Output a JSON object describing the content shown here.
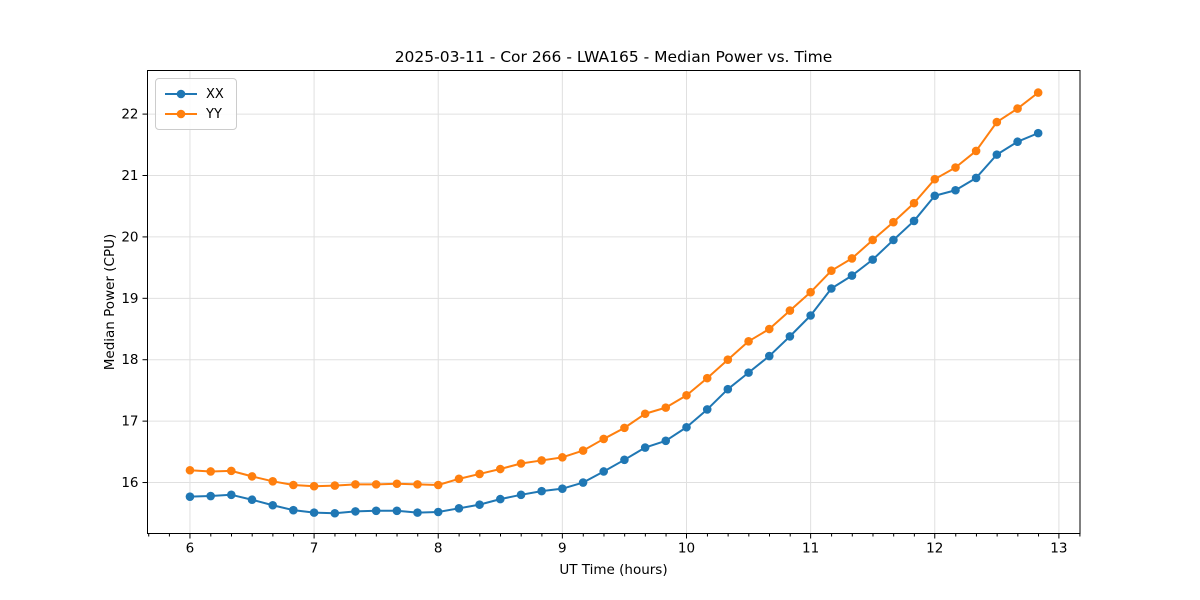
{
  "chart_data": {
    "type": "line",
    "title": "2025-03-11 - Cor 266 - LWA165 - Median Power vs. Time",
    "xlabel": "UT Time (hours)",
    "ylabel": "Median Power (CPU)",
    "xlim": [
      5.658,
      13.17
    ],
    "ylim": [
      15.17,
      22.71
    ],
    "xticks": [
      6,
      7,
      8,
      9,
      10,
      11,
      12,
      13
    ],
    "yticks": [
      16,
      17,
      18,
      19,
      20,
      21,
      22
    ],
    "x_minor_tick_step": 0.1667,
    "grid": true,
    "grid_color": "#e0e0e0",
    "legend_position": "upper left",
    "x": [
      6.0,
      6.167,
      6.333,
      6.5,
      6.667,
      6.833,
      7.0,
      7.167,
      7.333,
      7.5,
      7.667,
      7.833,
      8.0,
      8.167,
      8.333,
      8.5,
      8.667,
      8.833,
      9.0,
      9.167,
      9.333,
      9.5,
      9.667,
      9.833,
      10.0,
      10.167,
      10.333,
      10.5,
      10.667,
      10.833,
      11.0,
      11.167,
      11.333,
      11.5,
      11.667,
      11.833,
      12.0,
      12.167,
      12.333,
      12.5,
      12.667,
      12.833
    ],
    "series": [
      {
        "name": "XX",
        "color": "#1f77b4",
        "marker": "circle",
        "values": [
          15.77,
          15.78,
          15.8,
          15.72,
          15.63,
          15.55,
          15.51,
          15.5,
          15.53,
          15.54,
          15.54,
          15.51,
          15.52,
          15.58,
          15.64,
          15.73,
          15.8,
          15.86,
          15.9,
          16.0,
          16.18,
          16.37,
          16.57,
          16.68,
          16.9,
          17.19,
          17.52,
          17.79,
          18.06,
          18.38,
          18.72,
          19.16,
          19.37,
          19.63,
          19.95,
          20.26,
          20.67,
          20.76,
          20.96,
          21.34,
          21.55,
          21.69
        ]
      },
      {
        "name": "YY",
        "color": "#ff7f0e",
        "marker": "circle",
        "values": [
          16.2,
          16.18,
          16.19,
          16.1,
          16.02,
          15.96,
          15.94,
          15.95,
          15.97,
          15.97,
          15.98,
          15.97,
          15.96,
          16.06,
          16.14,
          16.22,
          16.31,
          16.36,
          16.41,
          16.52,
          16.71,
          16.89,
          17.12,
          17.22,
          17.42,
          17.7,
          18.0,
          18.3,
          18.5,
          18.8,
          19.1,
          19.45,
          19.65,
          19.95,
          20.24,
          20.55,
          20.94,
          21.13,
          21.4,
          21.87,
          22.09,
          22.35
        ]
      }
    ]
  }
}
